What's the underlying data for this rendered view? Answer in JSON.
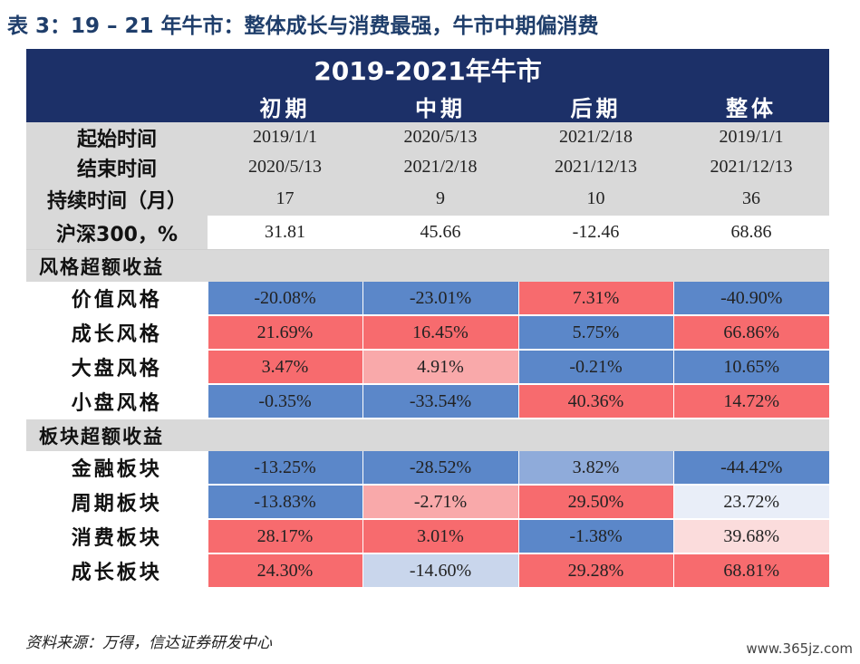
{
  "caption": "表 3：19 – 21 年牛市：整体成长与消费最强，牛市中期偏消费",
  "table_title": "2019-2021年牛市",
  "columns": [
    "初期",
    "中期",
    "后期",
    "整体"
  ],
  "start_label": "起始时间",
  "end_label": "结束时间",
  "start_dates": [
    "2019/1/1",
    "2020/5/13",
    "2021/2/18",
    "2019/1/1"
  ],
  "end_dates": [
    "2020/5/13",
    "2021/2/18",
    "2021/12/13",
    "2021/12/13"
  ],
  "duration_label": "持续时间（月）",
  "durations": [
    "17",
    "9",
    "10",
    "36"
  ],
  "hs300_label": "沪深300，%",
  "hs300": [
    "31.81",
    "45.66",
    "-12.46",
    "68.86"
  ],
  "style_section": "风格超额收益",
  "style_rows": [
    {
      "label": "价值风格",
      "values": [
        "-20.08%",
        "-23.01%",
        "7.31%",
        "-40.90%"
      ]
    },
    {
      "label": "成长风格",
      "values": [
        "21.69%",
        "16.45%",
        "5.75%",
        "66.86%"
      ]
    },
    {
      "label": "大盘风格",
      "values": [
        "3.47%",
        "4.91%",
        "-0.21%",
        "10.65%"
      ]
    },
    {
      "label": "小盘风格",
      "values": [
        "-0.35%",
        "-33.54%",
        "40.36%",
        "14.72%"
      ]
    }
  ],
  "sector_section": "板块超额收益",
  "sector_rows": [
    {
      "label": "金融板块",
      "values": [
        "-13.25%",
        "-28.52%",
        "3.82%",
        "-44.42%"
      ]
    },
    {
      "label": "周期板块",
      "values": [
        "-13.83%",
        "-2.71%",
        "29.50%",
        "23.72%"
      ]
    },
    {
      "label": "消费板块",
      "values": [
        "28.17%",
        "3.01%",
        "-1.38%",
        "39.68%"
      ]
    },
    {
      "label": "成长板块",
      "values": [
        "24.30%",
        "-14.60%",
        "29.28%",
        "68.81%"
      ]
    }
  ],
  "cell_colors": {
    "style": [
      [
        "#5b87c9",
        "#5b87c9",
        "#f76b6e",
        "#5b87c9"
      ],
      [
        "#f76b6e",
        "#f76b6e",
        "#5b87c9",
        "#f76b6e"
      ],
      [
        "#f76b6e",
        "#f9a9aa",
        "#5b87c9",
        "#5b87c9"
      ],
      [
        "#5b87c9",
        "#5b87c9",
        "#f76b6e",
        "#f76b6e"
      ]
    ],
    "sector": [
      [
        "#5b87c9",
        "#5b87c9",
        "#8fabda",
        "#5b87c9"
      ],
      [
        "#5b87c9",
        "#f9a9aa",
        "#f76b6e",
        "#e9eef8"
      ],
      [
        "#f76b6e",
        "#f76b6e",
        "#5b87c9",
        "#fbdcdc"
      ],
      [
        "#f76b6e",
        "#c9d6ec",
        "#f76b6e",
        "#f76b6e"
      ]
    ]
  },
  "source": "资料来源：万得，信达证券研发中心",
  "watermark": "www.365jz.com"
}
